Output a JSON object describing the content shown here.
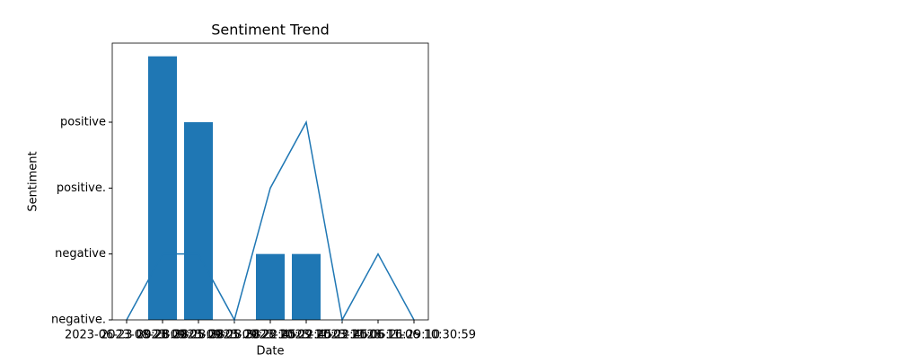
{
  "chart_data": {
    "type": "combo",
    "title": "Sentiment Trend",
    "x_label": "Date",
    "y_label": "Sentiment",
    "categories": [
      "2023-06-23 09:28:38",
      "2023-08-28 09:28:38",
      "2023-09-05 09:28:38",
      "2023-09-05 10:22:45",
      "2023-09-28 10:22:45",
      "2023-10-09 10:22:45",
      "2023-11-03 11:06:21",
      "2023-11-06 16:29:10",
      "2023-11-06 10:30:59"
    ],
    "series": [
      {
        "type": "bar",
        "color": "#1f77b4",
        "values": [
          0,
          4,
          3,
          0,
          1,
          1,
          0,
          0,
          0
        ]
      },
      {
        "type": "line",
        "color": "#1f77b4",
        "values": [
          0,
          1,
          1,
          0,
          2,
          3,
          0,
          1,
          0
        ]
      }
    ],
    "xlim": [
      -0.4,
      8.4
    ],
    "ylim": [
      0,
      4.2
    ],
    "yticks": [
      {
        "value": 0,
        "label": "negative."
      },
      {
        "value": 1,
        "label": "negative"
      },
      {
        "value": 2,
        "label": "positive."
      },
      {
        "value": 3,
        "label": "positive"
      }
    ],
    "grid": false
  }
}
